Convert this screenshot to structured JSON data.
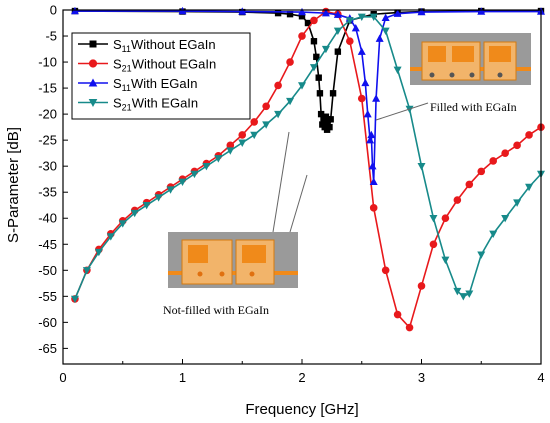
{
  "chart_data": {
    "type": "line",
    "xlabel": "Frequency [GHz]",
    "ylabel": "S-Parameter [dB]",
    "xlim": [
      0,
      4
    ],
    "ylim": [
      -68,
      0
    ],
    "x_ticks": [
      0,
      1,
      2,
      3,
      4
    ],
    "y_ticks": [
      0,
      -5,
      -10,
      -15,
      -20,
      -25,
      -30,
      -35,
      -40,
      -45,
      -50,
      -55,
      -60,
      -65
    ],
    "legend_position": "top-left",
    "series": [
      {
        "legend_sub": "11",
        "legend_suffix": "Without EGaIn",
        "color": "#000000",
        "marker": "square",
        "x": [
          0.1,
          1.0,
          1.5,
          1.8,
          1.9,
          2.0,
          2.05,
          2.1,
          2.12,
          2.14,
          2.15,
          2.16,
          2.17,
          2.18,
          2.19,
          2.2,
          2.21,
          2.22,
          2.23,
          2.24,
          2.26,
          2.3,
          2.4,
          2.6,
          2.8,
          3.0,
          3.5,
          4.0
        ],
        "y": [
          -0.2,
          -0.3,
          -0.4,
          -0.6,
          -0.8,
          -1.2,
          -2.5,
          -6,
          -9,
          -13,
          -16,
          -20,
          -22,
          -21,
          -22.5,
          -20.5,
          -23,
          -21,
          -22.5,
          -21,
          -16,
          -8,
          -2,
          -0.8,
          -0.5,
          -0.3,
          -0.2,
          -0.2
        ]
      },
      {
        "legend_sub": "21",
        "legend_suffix": "Without EGaIn",
        "color": "#e8191c",
        "marker": "circle",
        "x": [
          0.1,
          0.2,
          0.3,
          0.4,
          0.5,
          0.6,
          0.7,
          0.8,
          0.9,
          1.0,
          1.1,
          1.2,
          1.3,
          1.4,
          1.5,
          1.6,
          1.7,
          1.8,
          1.9,
          2.0,
          2.1,
          2.2,
          2.3,
          2.4,
          2.5,
          2.6,
          2.7,
          2.8,
          2.9,
          3.0,
          3.1,
          3.2,
          3.3,
          3.4,
          3.5,
          3.6,
          3.7,
          3.8,
          3.9,
          4.0
        ],
        "y": [
          -55.5,
          -50,
          -46,
          -43,
          -40.5,
          -38.5,
          -37,
          -35.5,
          -34,
          -32.5,
          -31,
          -29.5,
          -28,
          -26,
          -24,
          -21.5,
          -18.5,
          -14.5,
          -10,
          -5,
          -2,
          -0.3,
          -0.8,
          -6,
          -17,
          -38,
          -50,
          -58.5,
          -61,
          -53,
          -45,
          -40,
          -36.5,
          -33.5,
          -31,
          -29,
          -27.5,
          -26,
          -24,
          -22.5
        ]
      },
      {
        "legend_sub": "11",
        "legend_suffix": "With EGaIn",
        "color": "#1010ee",
        "marker": "triangle-up",
        "x": [
          0.1,
          1.0,
          1.5,
          2.0,
          2.2,
          2.3,
          2.4,
          2.45,
          2.5,
          2.53,
          2.55,
          2.57,
          2.58,
          2.59,
          2.6,
          2.62,
          2.65,
          2.7,
          2.8,
          3.0,
          3.5,
          4.0
        ],
        "y": [
          -0.2,
          -0.2,
          -0.3,
          -0.4,
          -0.6,
          -0.9,
          -1.6,
          -3.5,
          -8,
          -14,
          -20,
          -25,
          -24,
          -30,
          -33,
          -17,
          -5.5,
          -1.5,
          -0.7,
          -0.4,
          -0.3,
          -0.3
        ]
      },
      {
        "legend_sub": "21",
        "legend_suffix": "With EGaIn",
        "color": "#178a8a",
        "marker": "triangle-down",
        "x": [
          0.1,
          0.2,
          0.3,
          0.4,
          0.5,
          0.6,
          0.7,
          0.8,
          0.9,
          1.0,
          1.1,
          1.2,
          1.3,
          1.4,
          1.5,
          1.6,
          1.7,
          1.8,
          1.9,
          2.0,
          2.1,
          2.2,
          2.3,
          2.4,
          2.5,
          2.6,
          2.7,
          2.8,
          2.9,
          3.0,
          3.1,
          3.2,
          3.3,
          3.35,
          3.4,
          3.5,
          3.6,
          3.7,
          3.8,
          3.9,
          4.0
        ],
        "y": [
          -55.5,
          -50,
          -46.5,
          -43.5,
          -41,
          -39,
          -37.5,
          -36,
          -34.5,
          -33,
          -31.5,
          -30,
          -28.5,
          -27,
          -25.5,
          -24,
          -22,
          -20,
          -17.5,
          -14.5,
          -11,
          -7.5,
          -4,
          -2,
          -1.3,
          -1.3,
          -4,
          -11.5,
          -19,
          -30,
          -40,
          -48,
          -54,
          -55,
          -54.5,
          -47,
          -43,
          -40,
          -37,
          -34,
          -31.5
        ]
      }
    ],
    "annotations": [
      {
        "text": "Filled with EGaIn"
      },
      {
        "text": "Not-filled with EGaIn"
      }
    ]
  }
}
